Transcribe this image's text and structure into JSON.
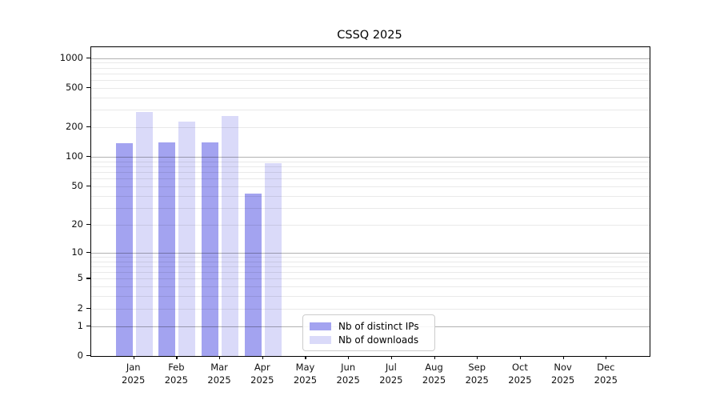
{
  "title": "CSSQ 2025",
  "chart_data": {
    "type": "bar",
    "title": "CSSQ 2025",
    "categories": [
      "Jan 2025",
      "Feb 2025",
      "Mar 2025",
      "Apr 2025",
      "May 2025",
      "Jun 2025",
      "Jul 2025",
      "Aug 2025",
      "Sep 2025",
      "Oct 2025",
      "Nov 2025",
      "Dec 2025"
    ],
    "categories_month": [
      "Jan",
      "Feb",
      "Mar",
      "Apr",
      "May",
      "Jun",
      "Jul",
      "Aug",
      "Sep",
      "Oct",
      "Nov",
      "Dec"
    ],
    "categories_year": "2025",
    "series": [
      {
        "name": "Nb of distinct IPs",
        "color": "#a3a3f0",
        "values": [
          138,
          140,
          140,
          42,
          null,
          null,
          null,
          null,
          null,
          null,
          null,
          null
        ]
      },
      {
        "name": "Nb of downloads",
        "color": "#dadaf9",
        "values": [
          288,
          231,
          262,
          86,
          null,
          null,
          null,
          null,
          null,
          null,
          null,
          null
        ]
      }
    ],
    "xlabel": "",
    "ylabel": "",
    "y_scale": "log1p",
    "ylim": [
      0,
      1290
    ],
    "y_ticks": [
      1000,
      500,
      200,
      100,
      50,
      20,
      10,
      5,
      2,
      1,
      0
    ],
    "y_major_gridlines": [
      1,
      10,
      100,
      1000
    ],
    "grid": "horizontal major+minor, drawn above bars",
    "legend_position": "inside lower center",
    "legend_entries": [
      "Nb of distinct IPs",
      "Nb of downloads"
    ]
  },
  "colors": {
    "bar_distinct_ips": "#a3a3f0",
    "bar_downloads": "#dadaf9",
    "major_grid": "rgba(0,0,0,0.30)",
    "minor_grid": "rgba(0,0,0,0.085)",
    "spine": "#000000",
    "background": "#ffffff"
  }
}
